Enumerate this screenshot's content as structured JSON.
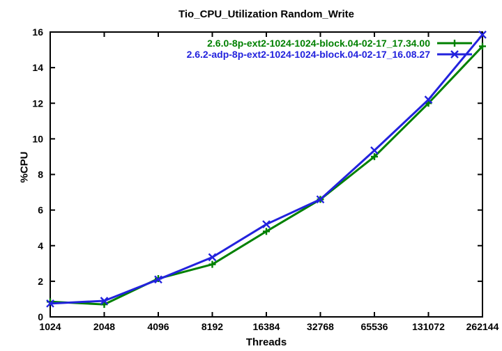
{
  "chart_data": {
    "type": "line",
    "title": "Tio_CPU_Utilization Random_Write",
    "xlabel": "Threads",
    "ylabel": "%CPU",
    "x_scale": "log2",
    "grid": false,
    "legend_position": "top-right-inside",
    "categories": [
      "1024",
      "2048",
      "4096",
      "8192",
      "16384",
      "32768",
      "65536",
      "131072",
      "262144"
    ],
    "y_ticks": [
      0,
      2,
      4,
      6,
      8,
      10,
      12,
      14,
      16
    ],
    "ylim": [
      0,
      16
    ],
    "axis_color": "#000000",
    "series": [
      {
        "name": "2.6.0-8p-ext2-1024-1024-block.04-02-17_17.34.00",
        "color": "#008000",
        "marker": "plus",
        "values": [
          0.85,
          0.7,
          2.15,
          2.95,
          4.8,
          6.6,
          9.0,
          12.0,
          15.2
        ]
      },
      {
        "name": "2.6.2-adp-8p-ext2-1024-1024-block.04-02-17_16.08.27",
        "color": "#2222dd",
        "marker": "cross",
        "values": [
          0.75,
          0.9,
          2.1,
          3.35,
          5.2,
          6.6,
          9.35,
          12.2,
          15.85
        ]
      }
    ]
  }
}
